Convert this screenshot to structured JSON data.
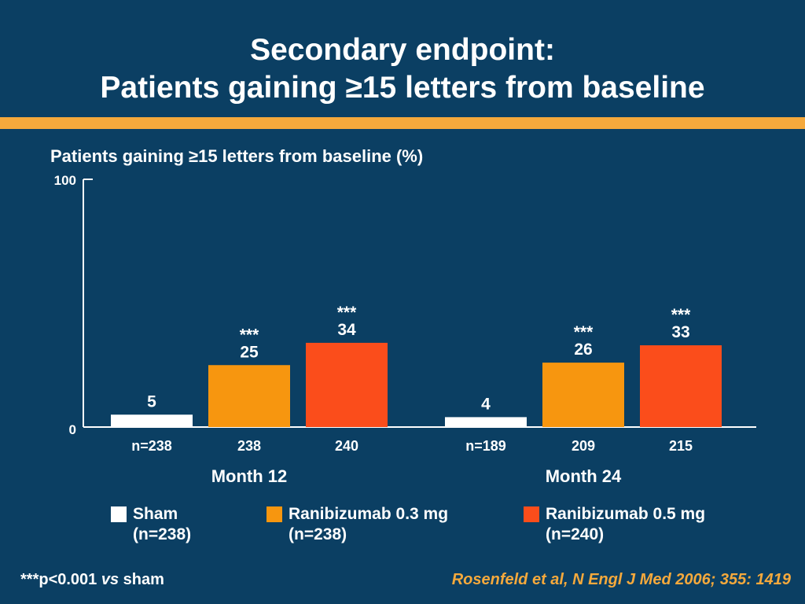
{
  "slide": {
    "title_line1": "Secondary endpoint:",
    "title_line2": "Patients gaining ≥15 letters from baseline",
    "footnote_prefix": "***p<0.001 ",
    "footnote_vs": "vs",
    "footnote_suffix": " sham",
    "citation": "Rosenfeld et al, N Engl J Med 2006; 355: 1419"
  },
  "chart_data": {
    "type": "bar",
    "title": "Patients gaining ≥15 letters from baseline (%)",
    "ylabel": "",
    "ylim": [
      0,
      100
    ],
    "y_ticks": [
      "0",
      "100"
    ],
    "groups": [
      {
        "label": "Month 12",
        "bars": [
          {
            "series": "Sham",
            "value": 5,
            "label": "5",
            "n_label": "n=238",
            "significance": ""
          },
          {
            "series": "Ranibizumab 0.3 mg",
            "value": 25,
            "label": "25",
            "n_label": "238",
            "significance": "***"
          },
          {
            "series": "Ranibizumab 0.5 mg",
            "value": 34,
            "label": "34",
            "n_label": "240",
            "significance": "***"
          }
        ]
      },
      {
        "label": "Month 24",
        "bars": [
          {
            "series": "Sham",
            "value": 4,
            "label": "4",
            "n_label": "n=189",
            "significance": ""
          },
          {
            "series": "Ranibizumab 0.3 mg",
            "value": 26,
            "label": "26",
            "n_label": "209",
            "significance": "***"
          },
          {
            "series": "Ranibizumab 0.5 mg",
            "value": 33,
            "label": "33",
            "n_label": "215",
            "significance": "***"
          }
        ]
      }
    ],
    "series": [
      {
        "name": "Sham",
        "n": "(n=238)",
        "color": "#ffffff"
      },
      {
        "name": "Ranibizumab 0.3 mg",
        "n": "(n=238)",
        "color": "#f7960f"
      },
      {
        "name": "Ranibizumab 0.5 mg",
        "n": "(n=240)",
        "color": "#fb4d1b"
      }
    ],
    "grid": false,
    "legend_position": "bottom"
  }
}
